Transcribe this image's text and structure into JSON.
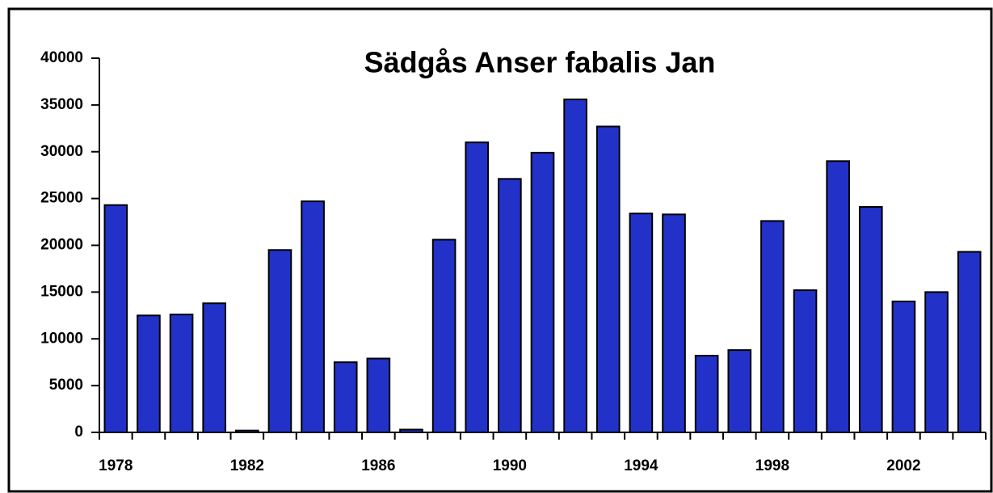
{
  "chart_data": {
    "type": "bar",
    "title": "Sädgås Anser fabalis Jan",
    "categories": [
      "1978",
      null,
      null,
      null,
      "1982",
      null,
      null,
      null,
      "1986",
      null,
      null,
      null,
      "1990",
      null,
      null,
      null,
      "1994",
      null,
      null,
      null,
      "1998",
      null,
      null,
      null,
      "2002",
      null,
      null
    ],
    "values": [
      24300,
      12500,
      12600,
      13800,
      200,
      19500,
      24700,
      7500,
      7900,
      300,
      20600,
      31000,
      27100,
      29900,
      35600,
      32700,
      23400,
      23300,
      8200,
      8800,
      22600,
      15200,
      29000,
      24100,
      14000,
      15000,
      19300
    ],
    "color": "#2232c8",
    "ylim": [
      0,
      40000
    ],
    "yticks": [
      0,
      5000,
      10000,
      15000,
      20000,
      25000,
      30000,
      35000,
      40000
    ],
    "grid": false
  }
}
